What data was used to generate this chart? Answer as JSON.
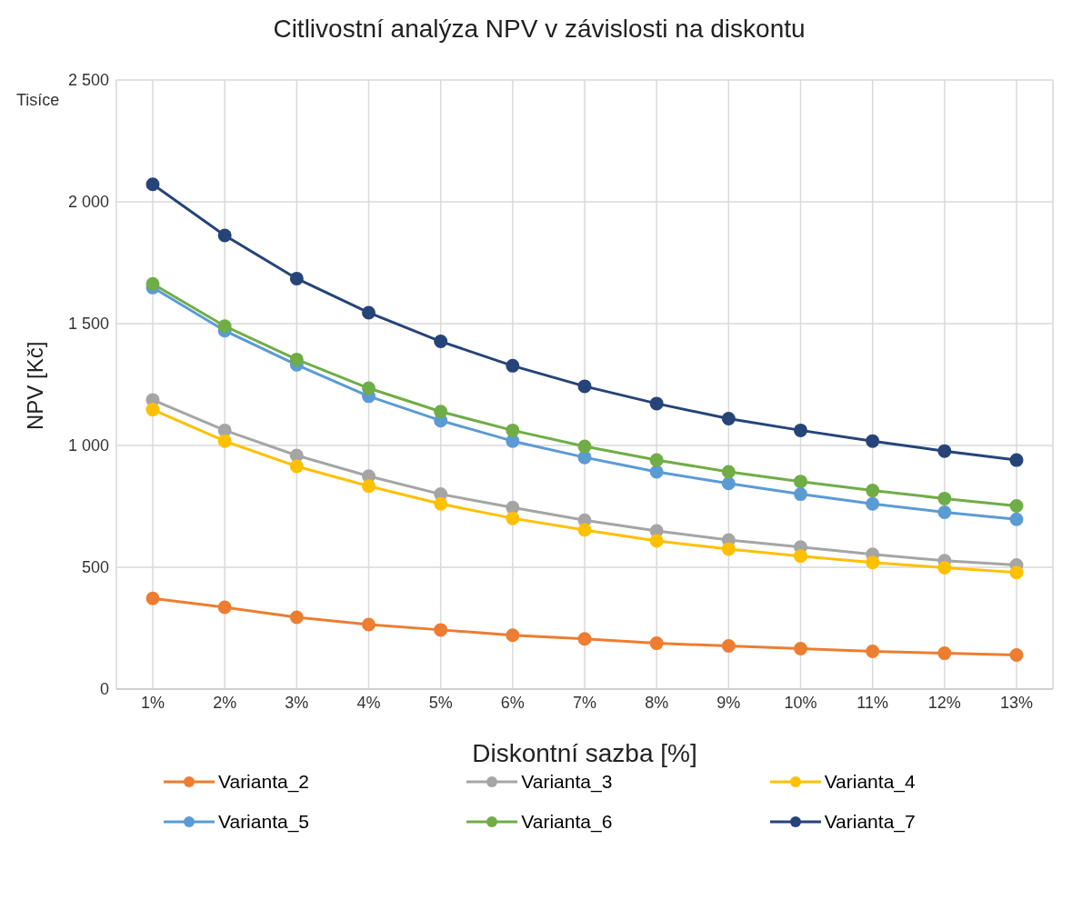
{
  "chart_data": {
    "type": "line",
    "title": "Citlivostní analýza NPV v závislosti na diskontu",
    "xlabel": "Diskontní sazba [%]",
    "ylabel": "NPV [Kč]",
    "annotations": [
      "Tisíce"
    ],
    "categories": [
      "1%",
      "2%",
      "3%",
      "4%",
      "5%",
      "6%",
      "7%",
      "8%",
      "9%",
      "10%",
      "11%",
      "12%",
      "13%"
    ],
    "ylim": [
      0,
      2500
    ],
    "yticks": [
      0,
      500,
      {
        "value": 1000,
        "label": "1 000"
      },
      {
        "value": 1500,
        "label": "1 500"
      },
      {
        "value": 2000,
        "label": "2 000"
      },
      {
        "value": 2500,
        "label": "2 500"
      }
    ],
    "grid": true,
    "legend": "bottom",
    "marker": "circle",
    "line_style": "solid",
    "series": [
      {
        "name": "Varianta_2",
        "color": "#ed7d31",
        "values": [
          372,
          336,
          295,
          265,
          243,
          221,
          206,
          188,
          177,
          166,
          155,
          147,
          140
        ]
      },
      {
        "name": "Varianta_3",
        "color": "#a5a5a5",
        "values": [
          1187,
          1062,
          959,
          874,
          800,
          745,
          693,
          649,
          612,
          583,
          553,
          527,
          509
        ]
      },
      {
        "name": "Varianta_4",
        "color": "#ffc000",
        "values": [
          1147,
          1018,
          914,
          833,
          760,
          701,
          653,
          608,
          575,
          546,
          520,
          498,
          479
        ]
      },
      {
        "name": "Varianta_5",
        "color": "#5b9bd5",
        "values": [
          1648,
          1471,
          1331,
          1202,
          1102,
          1018,
          951,
          892,
          844,
          800,
          760,
          726,
          697
        ]
      },
      {
        "name": "Varianta_6",
        "color": "#70ad47",
        "values": [
          1663,
          1490,
          1353,
          1235,
          1139,
          1062,
          996,
          940,
          892,
          852,
          815,
          782,
          752
        ]
      },
      {
        "name": "Varianta_7",
        "color": "#264478",
        "values": [
          2072,
          1862,
          1685,
          1545,
          1427,
          1327,
          1243,
          1172,
          1110,
          1062,
          1018,
          977,
          940
        ]
      }
    ]
  }
}
